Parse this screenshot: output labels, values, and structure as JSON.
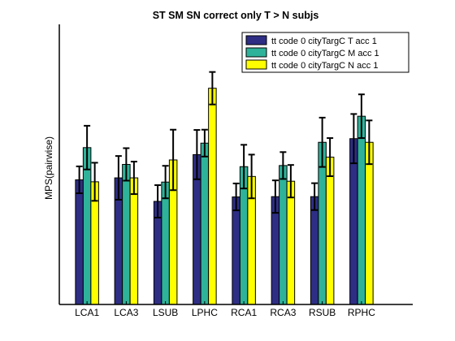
{
  "chart_data": {
    "type": "bar",
    "title": "ST SM SN correct only T > N subjs",
    "xlabel": "",
    "ylabel": "MPS(pairwise)",
    "categories": [
      "LCA1",
      "LCA3",
      "LSUB",
      "LPHC",
      "RCA1",
      "RCA3",
      "RSUB",
      "RPHC"
    ],
    "ylim": [
      0,
      1
    ],
    "grid": false,
    "legend_position": "top-right",
    "series": [
      {
        "name": "tt code 0 cityTargC T acc 1",
        "color": "#2e2e85",
        "values": [
          0.445,
          0.452,
          0.368,
          0.535,
          0.384,
          0.385,
          0.385,
          0.592
        ],
        "errors": [
          0.048,
          0.078,
          0.058,
          0.088,
          0.048,
          0.058,
          0.048,
          0.088
        ]
      },
      {
        "name": "tt code 0 cityTargC M acc 1",
        "color": "#2eb39a",
        "values": [
          0.56,
          0.5,
          0.437,
          0.576,
          0.492,
          0.496,
          0.579,
          0.672
        ],
        "errors": [
          0.078,
          0.058,
          0.058,
          0.048,
          0.078,
          0.048,
          0.088,
          0.078
        ]
      },
      {
        "name": "tt code 0 cityTargC N acc 1",
        "color": "#ffff00",
        "values": [
          0.438,
          0.452,
          0.516,
          0.772,
          0.457,
          0.44,
          0.526,
          0.579
        ],
        "errors": [
          0.068,
          0.058,
          0.108,
          0.058,
          0.078,
          0.058,
          0.068,
          0.078
        ]
      }
    ]
  }
}
